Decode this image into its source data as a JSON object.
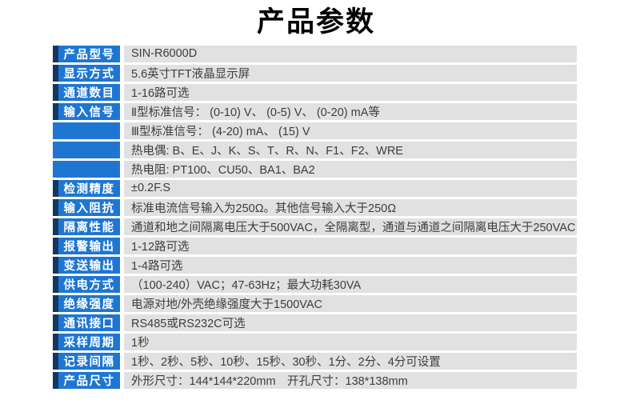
{
  "title": "产品参数",
  "colors": {
    "accent_blue": "#1e76d2",
    "accent_navy": "#14375f",
    "value_bg": "#e1e1e1",
    "title_text": "#000000",
    "value_text": "#3d3d3d"
  },
  "table": {
    "rows": [
      {
        "label": "产品型号",
        "value": "SIN-R6000D"
      },
      {
        "label": "显示方式",
        "value": "5.6英寸TFT液晶显示屏"
      },
      {
        "label": "通道数目",
        "value": "1-16路可选"
      },
      {
        "label": "输入信号",
        "value": "Ⅱ型标准信号： (0-10) V、 (0-5) V、 (0-20) mA等"
      },
      {
        "label": "",
        "value": "Ⅲ型标准信号： (4-20) mA、 (15) V"
      },
      {
        "label": "",
        "value": "热电偶: B、E、J、K、S、T、R、N、F1、F2、WRE"
      },
      {
        "label": "",
        "value": "热电阻: PT100、CU50、BA1、BA2"
      },
      {
        "label": "检测精度",
        "value": "±0.2F.S"
      },
      {
        "label": "输入阻抗",
        "value": "标准电流信号输入为250Ω。其他信号输入大于250Ω"
      },
      {
        "label": "隔离性能",
        "value": "通道和地之间隔离电压大于500VAC，全隔离型，通道与通道之间隔离电压大于250VAC"
      },
      {
        "label": "报警输出",
        "value": "1-12路可选"
      },
      {
        "label": "变送输出",
        "value": "1-4路可选"
      },
      {
        "label": "供电方式",
        "value": "（100-240）VAC；47-63Hz；最大功耗30VA"
      },
      {
        "label": "绝缘强度",
        "value": "电源对地/外壳绝缘强度大于1500VAC"
      },
      {
        "label": "通讯接口",
        "value": "RS485或RS232C可选"
      },
      {
        "label": "采样周期",
        "value": "1秒"
      },
      {
        "label": "记录间隔",
        "value": "1秒、2秒、5秒、10秒、15秒、30秒、1分、2分、4分可设置"
      },
      {
        "label": "产品尺寸",
        "value": "外形尺寸：144*144*220mm　开孔尺寸：138*138mm"
      }
    ]
  }
}
